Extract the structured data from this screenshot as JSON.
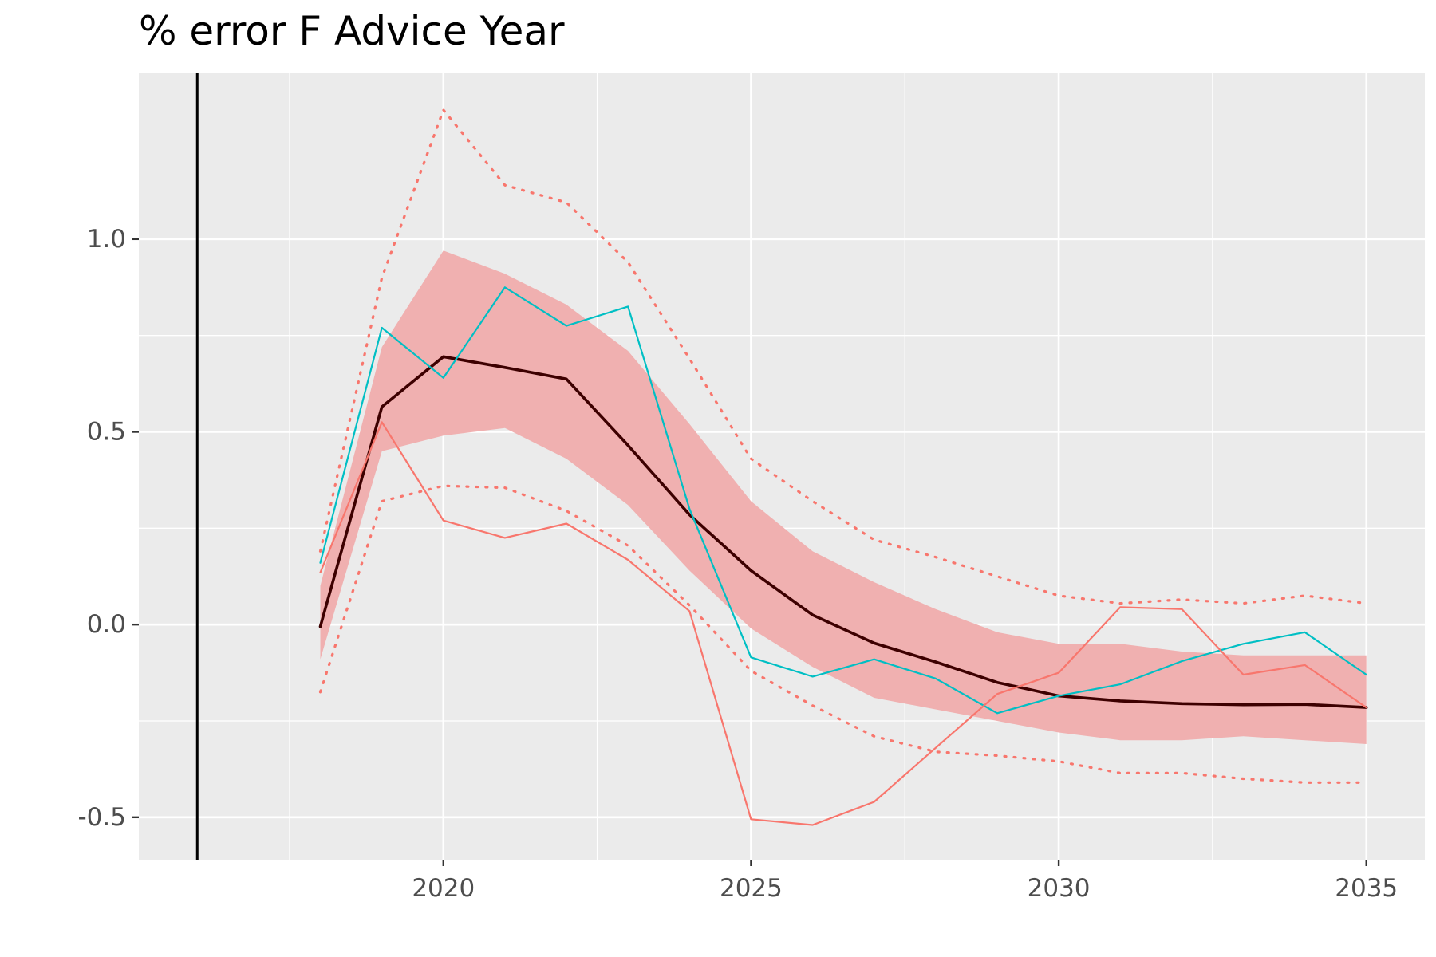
{
  "chart_data": {
    "type": "line",
    "title": "% error F Advice Year",
    "xlabel": "",
    "ylabel": "",
    "xlim": [
      2015.05,
      2035.95
    ],
    "ylim": [
      -0.61,
      1.43
    ],
    "x_ticks": [
      2020,
      2025,
      2030,
      2035
    ],
    "x_tick_labels": [
      "2020",
      "2025",
      "2030",
      "2035"
    ],
    "y_ticks": [
      -0.5,
      0.0,
      0.5,
      1.0
    ],
    "y_tick_labels": [
      "-0.5",
      "0.0",
      "0.5",
      "1.0"
    ],
    "grid": true,
    "legend": "none",
    "vline_x": 2016,
    "x": [
      2018,
      2019,
      2020,
      2021,
      2022,
      2023,
      2024,
      2025,
      2026,
      2027,
      2028,
      2029,
      2030,
      2031,
      2032,
      2033,
      2034,
      2035
    ],
    "band": {
      "lower": [
        -0.09,
        0.45,
        0.49,
        0.51,
        0.43,
        0.31,
        0.14,
        -0.01,
        -0.11,
        -0.19,
        -0.22,
        -0.25,
        -0.28,
        -0.3,
        -0.3,
        -0.29,
        -0.3,
        -0.31
      ],
      "upper": [
        0.1,
        0.72,
        0.97,
        0.91,
        0.83,
        0.71,
        0.52,
        0.32,
        0.19,
        0.11,
        0.04,
        -0.02,
        -0.05,
        -0.05,
        -0.07,
        -0.08,
        -0.08,
        -0.08
      ],
      "color": "#f0b0b0"
    },
    "series": [
      {
        "values": [
          -0.005,
          0.565,
          0.695,
          0.667,
          0.637,
          0.465,
          0.285,
          0.14,
          0.025,
          -0.048,
          -0.097,
          -0.15,
          -0.185,
          -0.198,
          -0.205,
          -0.208,
          -0.207,
          -0.215
        ],
        "color": "#3d0000",
        "style": "solid-thick"
      },
      {
        "values": [
          0.16,
          0.77,
          0.64,
          0.875,
          0.775,
          0.825,
          0.3,
          -0.085,
          -0.135,
          -0.09,
          -0.14,
          -0.23,
          -0.185,
          -0.155,
          -0.095,
          -0.05,
          -0.02,
          -0.13
        ],
        "color": "#00bfc4",
        "style": "solid"
      },
      {
        "values": [
          0.135,
          0.525,
          0.27,
          0.225,
          0.262,
          0.168,
          0.035,
          -0.505,
          -0.52,
          -0.46,
          -0.32,
          -0.18,
          -0.125,
          0.045,
          0.04,
          -0.13,
          -0.105,
          -0.215
        ],
        "color": "#f8766d",
        "style": "solid"
      },
      {
        "values": [
          0.19,
          0.9,
          1.335,
          1.14,
          1.095,
          0.94,
          0.69,
          0.43,
          0.32,
          0.22,
          0.175,
          0.125,
          0.075,
          0.055,
          0.065,
          0.055,
          0.075,
          0.055
        ],
        "color": "#f8766d",
        "style": "dotted"
      },
      {
        "values": [
          -0.175,
          0.32,
          0.36,
          0.355,
          0.295,
          0.205,
          0.05,
          -0.12,
          -0.21,
          -0.29,
          -0.33,
          -0.34,
          -0.355,
          -0.385,
          -0.385,
          -0.4,
          -0.41,
          -0.41
        ],
        "color": "#f8766d",
        "style": "dotted"
      }
    ]
  }
}
